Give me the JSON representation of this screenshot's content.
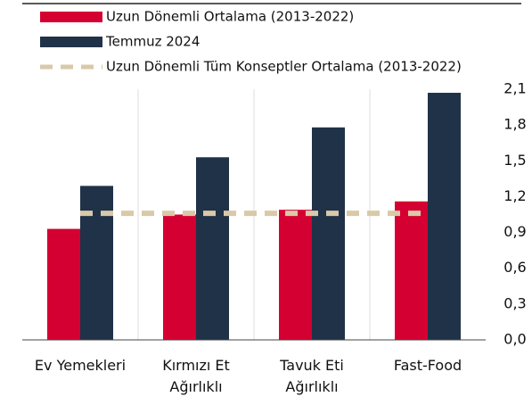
{
  "chart_data": {
    "type": "bar",
    "categories": [
      "Ev Yemekleri",
      "Kırmızı Et Ağırlıklı",
      "Tavuk Eti Ağırlıklı",
      "Fast-Food"
    ],
    "series": [
      {
        "name": "Uzun Dönemli Ortalama (2013-2022)",
        "color": "#d50032",
        "values": [
          0.93,
          1.05,
          1.09,
          1.16
        ]
      },
      {
        "name": "Temmuz 2024",
        "color": "#1f3248",
        "values": [
          1.29,
          1.53,
          1.78,
          2.07
        ]
      }
    ],
    "reference_line": {
      "name": "Uzun Dönemli Tüm Konseptler Ortalama (2013-2022)",
      "color": "#d9c9a8",
      "value": 1.06
    },
    "ylim": [
      0,
      2.1
    ],
    "yticks": [
      {
        "value": 0,
        "label": "0,0"
      },
      {
        "value": 0.3,
        "label": "0,3"
      },
      {
        "value": 0.6,
        "label": "0,6"
      },
      {
        "value": 0.9,
        "label": "0,9"
      },
      {
        "value": 1.2,
        "label": "1,2"
      },
      {
        "value": 1.5,
        "label": "1,5"
      },
      {
        "value": 1.8,
        "label": "1,8"
      },
      {
        "value": 2.1,
        "label": "2,1"
      }
    ],
    "legend": "top"
  }
}
